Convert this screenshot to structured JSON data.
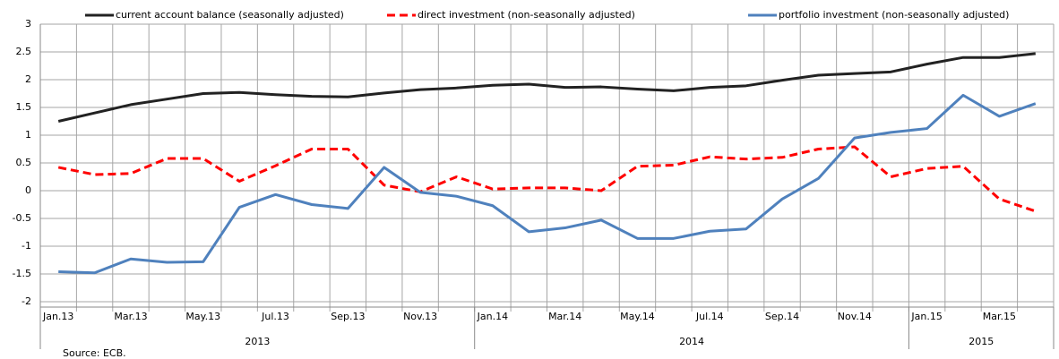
{
  "chart_data": {
    "type": "line",
    "categories": [
      "Jan.13",
      null,
      "Mar.13",
      null,
      "May.13",
      null,
      "Jul.13",
      null,
      "Sep.13",
      null,
      "Nov.13",
      null,
      "Jan.14",
      null,
      "Mar.14",
      null,
      "May.14",
      null,
      "Jul.14",
      null,
      "Sep.14",
      null,
      "Nov.14",
      null,
      "Jan.15",
      null,
      "Mar.15",
      null
    ],
    "years": [
      "2013",
      "2014",
      "2015"
    ],
    "series": [
      {
        "name": "current account balance (seasonally adjusted)",
        "color": "#222222",
        "dash": false,
        "values": [
          1.25,
          1.4,
          1.55,
          1.65,
          1.75,
          1.77,
          1.73,
          1.7,
          1.69,
          1.76,
          1.82,
          1.85,
          1.9,
          1.92,
          1.86,
          1.87,
          1.83,
          1.8,
          1.86,
          1.89,
          1.99,
          2.08,
          2.11,
          2.14,
          2.28,
          2.4,
          2.4,
          2.47
        ]
      },
      {
        "name": "direct investment (non-seasonally adjusted)",
        "color": "#ff0000",
        "dash": true,
        "values": [
          0.42,
          0.29,
          0.31,
          0.58,
          0.58,
          0.17,
          0.45,
          0.75,
          0.75,
          0.1,
          -0.02,
          0.25,
          0.03,
          0.05,
          0.05,
          0.0,
          0.44,
          0.46,
          0.61,
          0.57,
          0.6,
          0.75,
          0.79,
          0.25,
          0.4,
          0.44,
          -0.15,
          -0.37
        ]
      },
      {
        "name": "portfolio investment (non-seasonally adjusted)",
        "color": "#4f81bd",
        "dash": false,
        "values": [
          -1.46,
          -1.48,
          -1.23,
          -1.29,
          -1.28,
          -0.3,
          -0.07,
          -0.25,
          -0.32,
          0.42,
          -0.03,
          -0.1,
          -0.27,
          -0.74,
          -0.67,
          -0.53,
          -0.86,
          -0.86,
          -0.73,
          -0.69,
          -0.15,
          0.22,
          0.95,
          1.05,
          1.12,
          1.72,
          1.34,
          1.57
        ]
      }
    ],
    "ylim": [
      -2,
      3
    ],
    "yticks": [
      -2,
      -1.5,
      -1,
      -0.5,
      0,
      0.5,
      1,
      1.5,
      2,
      2.5,
      3
    ],
    "grid": true,
    "source": "Source: ECB."
  }
}
